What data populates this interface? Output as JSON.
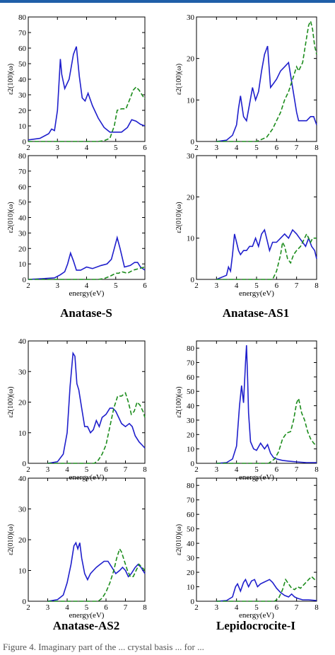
{
  "figure": {
    "caption": "Figure 4. Imaginary part of the ... crystal basis ... for ...",
    "group_titles": [
      "Anatase-S",
      "Anatase-AS1",
      "Anatase-AS2",
      "Lepidocrocite-I"
    ]
  },
  "colors": {
    "solid": "#1f1fcc",
    "dashed": "#1c8c1c",
    "top_rule": "#1f5fa8"
  },
  "chart_data": [
    {
      "type": "line",
      "group": "Anatase-S",
      "ylabel": "ε2(100)(ω)",
      "xlim": [
        2,
        6
      ],
      "ylim": [
        0,
        80
      ],
      "xticks": [
        "2",
        "3",
        "4",
        "5",
        "6"
      ],
      "yticks": [
        "0",
        "10",
        "20",
        "30",
        "40",
        "50",
        "60",
        "70",
        "80"
      ],
      "series": [
        {
          "style": "solid",
          "x": [
            2,
            2.4,
            2.7,
            2.8,
            2.9,
            3.0,
            3.1,
            3.15,
            3.25,
            3.4,
            3.55,
            3.65,
            3.75,
            3.85,
            3.95,
            4.05,
            4.2,
            4.4,
            4.6,
            4.8,
            5.0,
            5.2,
            5.4,
            5.55,
            5.7,
            5.85,
            6
          ],
          "y": [
            1,
            2,
            5,
            8,
            7,
            20,
            53,
            43,
            34,
            40,
            56,
            61,
            42,
            28,
            26,
            31,
            23,
            15,
            9,
            6,
            6,
            6,
            9,
            14,
            13,
            11,
            10
          ]
        },
        {
          "style": "dashed",
          "x": [
            2,
            4.4,
            4.6,
            4.8,
            4.95,
            5.05,
            5.2,
            5.35,
            5.5,
            5.6,
            5.7,
            5.8,
            5.9,
            6
          ],
          "y": [
            0,
            0,
            0.5,
            2,
            10,
            20,
            21,
            21,
            28,
            33,
            35,
            33,
            30,
            27
          ]
        }
      ]
    },
    {
      "type": "line",
      "group": "Anatase-AS1",
      "ylabel": "ε2(100)(ω)",
      "xlim": [
        2,
        8
      ],
      "ylim": [
        0,
        30
      ],
      "xticks": [
        "2",
        "3",
        "4",
        "5",
        "6",
        "7",
        "8"
      ],
      "yticks": [
        "0",
        "10",
        "20",
        "30"
      ],
      "series": [
        {
          "style": "solid",
          "x": [
            3,
            3.5,
            3.8,
            4.0,
            4.1,
            4.2,
            4.35,
            4.5,
            4.65,
            4.8,
            4.95,
            5.1,
            5.25,
            5.4,
            5.55,
            5.7,
            5.85,
            6.0,
            6.2,
            6.4,
            6.6,
            6.8,
            7.0,
            7.1,
            7.3,
            7.5,
            7.7,
            7.85,
            8
          ],
          "y": [
            0,
            0.3,
            1.5,
            4,
            8,
            11,
            6,
            5,
            9,
            13,
            10,
            12,
            17,
            21,
            23,
            13,
            14,
            15,
            17,
            18,
            19,
            13,
            7,
            5,
            5,
            5,
            6,
            6,
            4
          ]
        },
        {
          "style": "dashed",
          "x": [
            3,
            5.0,
            5.5,
            5.8,
            6.0,
            6.2,
            6.4,
            6.6,
            6.8,
            7.0,
            7.1,
            7.3,
            7.4,
            7.5,
            7.6,
            7.7,
            7.8,
            7.9,
            8
          ],
          "y": [
            0,
            0,
            1,
            3,
            5,
            7,
            10,
            12,
            15,
            18,
            17,
            19,
            22,
            25,
            28,
            29,
            27,
            23,
            21
          ]
        }
      ]
    },
    {
      "type": "line",
      "group": "Anatase-S",
      "ylabel": "ε2(010)(ω)",
      "xlabel": "energy(eV)",
      "xlim": [
        2,
        6
      ],
      "ylim": [
        0,
        80
      ],
      "xticks": [
        "2",
        "3",
        "4",
        "5",
        "6"
      ],
      "yticks": [
        "0",
        "10",
        "20",
        "30",
        "40",
        "50",
        "60",
        "70",
        "80"
      ],
      "series": [
        {
          "style": "solid",
          "x": [
            2,
            2.5,
            2.9,
            3.1,
            3.25,
            3.35,
            3.45,
            3.55,
            3.65,
            3.8,
            4.0,
            4.2,
            4.5,
            4.7,
            4.85,
            4.95,
            5.05,
            5.15,
            5.3,
            5.5,
            5.65,
            5.75,
            5.85,
            6
          ],
          "y": [
            0,
            0.5,
            1,
            3,
            5,
            10,
            17,
            12,
            6,
            6,
            8,
            7,
            9,
            10,
            13,
            20,
            27,
            20,
            8,
            9,
            11,
            11,
            8,
            6
          ]
        },
        {
          "style": "dashed",
          "x": [
            2,
            4.4,
            4.6,
            4.8,
            5.0,
            5.1,
            5.2,
            5.4,
            5.6,
            5.8,
            6
          ],
          "y": [
            0,
            0,
            0.5,
            2,
            4,
            4,
            5,
            4,
            6,
            7,
            8
          ]
        }
      ]
    },
    {
      "type": "line",
      "group": "Anatase-AS1",
      "ylabel": "ε2(010)(ω)",
      "xlabel": "energy(eV)",
      "xlim": [
        2,
        8
      ],
      "ylim": [
        0,
        30
      ],
      "xticks": [
        "2",
        "3",
        "4",
        "5",
        "6",
        "7",
        "8"
      ],
      "yticks": [
        "0",
        "10",
        "20",
        "30"
      ],
      "series": [
        {
          "style": "solid",
          "x": [
            3,
            3.5,
            3.6,
            3.7,
            3.8,
            3.9,
            4.0,
            4.1,
            4.2,
            4.35,
            4.5,
            4.65,
            4.8,
            4.95,
            5.1,
            5.25,
            5.4,
            5.5,
            5.65,
            5.8,
            6.0,
            6.2,
            6.4,
            6.6,
            6.8,
            7.0,
            7.15,
            7.3,
            7.45,
            7.6,
            7.75,
            7.9,
            8
          ],
          "y": [
            0,
            1,
            3,
            2,
            6,
            11,
            9,
            7,
            6,
            7,
            7,
            8,
            8,
            10,
            8,
            11,
            12,
            10,
            7,
            9,
            9,
            10,
            11,
            10,
            12,
            11,
            10,
            9,
            8,
            10,
            8,
            7,
            5
          ]
        },
        {
          "style": "dashed",
          "x": [
            3,
            5.8,
            6.0,
            6.2,
            6.3,
            6.4,
            6.55,
            6.7,
            6.85,
            7.0,
            7.2,
            7.4,
            7.5,
            7.6,
            7.7,
            7.8,
            8
          ],
          "y": [
            0,
            0,
            2,
            6,
            9,
            8,
            5,
            4,
            6,
            7,
            8,
            10,
            11,
            10,
            9,
            10,
            10
          ]
        }
      ]
    },
    {
      "type": "line",
      "group": "Anatase-AS2",
      "ylabel": "ε2(100)(ω)",
      "xlabel": "energy(eV)",
      "xlim": [
        2,
        8
      ],
      "ylim": [
        0,
        40
      ],
      "xticks": [
        "2",
        "3",
        "4",
        "5",
        "6",
        "7",
        "8"
      ],
      "yticks": [
        "0",
        "10",
        "20",
        "30",
        "40"
      ],
      "series": [
        {
          "style": "solid",
          "x": [
            3,
            3.5,
            3.8,
            4.0,
            4.15,
            4.3,
            4.4,
            4.5,
            4.6,
            4.75,
            4.9,
            5.05,
            5.2,
            5.35,
            5.5,
            5.65,
            5.8,
            6.0,
            6.2,
            6.35,
            6.5,
            6.65,
            6.8,
            7.0,
            7.2,
            7.35,
            7.5,
            7.7,
            7.85,
            8
          ],
          "y": [
            0,
            0.5,
            3,
            10,
            25,
            36,
            35,
            26,
            24,
            18,
            12,
            12,
            10,
            11,
            14,
            12,
            15,
            16,
            18,
            18,
            17,
            15,
            13,
            12,
            13,
            12,
            9,
            7,
            6,
            5
          ]
        },
        {
          "style": "dashed",
          "x": [
            3,
            5.4,
            5.6,
            5.8,
            6.0,
            6.2,
            6.4,
            6.6,
            6.8,
            7.0,
            7.15,
            7.3,
            7.45,
            7.6,
            7.75,
            7.9,
            8
          ],
          "y": [
            0,
            0,
            1,
            3,
            6,
            12,
            18,
            22,
            22,
            23,
            20,
            16,
            17,
            20,
            19,
            17,
            15
          ]
        }
      ]
    },
    {
      "type": "line",
      "group": "Lepidocrocite-I",
      "ylabel": "ε2(100)(ω)",
      "xlabel": "energy(eV)",
      "xlim": [
        2,
        8
      ],
      "ylim": [
        0,
        85
      ],
      "xticks": [
        "2",
        "3",
        "4",
        "5",
        "6",
        "7",
        "8"
      ],
      "yticks": [
        "0",
        "10",
        "20",
        "30",
        "40",
        "50",
        "60",
        "70",
        "80"
      ],
      "series": [
        {
          "style": "solid",
          "x": [
            3,
            3.5,
            3.8,
            4.0,
            4.15,
            4.25,
            4.35,
            4.45,
            4.5,
            4.55,
            4.6,
            4.7,
            4.85,
            5.0,
            5.2,
            5.4,
            5.55,
            5.7,
            5.85,
            6.0,
            6.3,
            6.6,
            7.0,
            7.5,
            8
          ],
          "y": [
            0,
            0.5,
            3,
            12,
            40,
            54,
            42,
            70,
            82,
            60,
            35,
            15,
            10,
            9,
            14,
            10,
            13,
            7,
            4,
            3,
            2,
            1.5,
            1,
            0.5,
            0.5
          ]
        },
        {
          "style": "dashed",
          "x": [
            3,
            5.6,
            5.9,
            6.1,
            6.3,
            6.5,
            6.7,
            6.85,
            7.0,
            7.1,
            7.25,
            7.4,
            7.55,
            7.7,
            7.85,
            8
          ],
          "y": [
            0,
            0,
            3,
            8,
            17,
            21,
            22,
            30,
            42,
            45,
            35,
            30,
            22,
            17,
            14,
            12
          ]
        }
      ]
    },
    {
      "type": "line",
      "group": "Anatase-AS2",
      "ylabel": "ε2(010)(ω)",
      "xlabel": "energy(eV)",
      "xlim": [
        2,
        8
      ],
      "ylim": [
        0,
        40
      ],
      "xticks": [
        "2",
        "3",
        "4",
        "5",
        "6",
        "7",
        "8"
      ],
      "yticks": [
        "0",
        "10",
        "20",
        "30",
        "40"
      ],
      "series": [
        {
          "style": "solid",
          "x": [
            3,
            3.5,
            3.8,
            4.0,
            4.2,
            4.35,
            4.45,
            4.55,
            4.65,
            4.75,
            4.9,
            5.05,
            5.2,
            5.35,
            5.5,
            5.7,
            5.9,
            6.1,
            6.3,
            6.5,
            6.7,
            6.85,
            7.0,
            7.15,
            7.3,
            7.5,
            7.65,
            7.8,
            8
          ],
          "y": [
            0,
            0.5,
            2,
            6,
            12,
            18,
            19,
            17,
            19,
            14,
            9,
            7,
            9,
            10,
            11,
            12,
            13,
            13,
            11,
            9,
            10,
            11,
            10,
            8,
            9,
            11,
            12,
            11,
            9
          ]
        },
        {
          "style": "dashed",
          "x": [
            3,
            5.6,
            5.8,
            6.0,
            6.2,
            6.4,
            6.55,
            6.7,
            6.8,
            6.95,
            7.1,
            7.25,
            7.4,
            7.55,
            7.7,
            7.85,
            8
          ],
          "y": [
            0,
            0,
            1,
            3,
            6,
            10,
            14,
            17,
            16,
            13,
            10,
            8,
            8,
            10,
            12,
            11,
            10
          ]
        }
      ]
    },
    {
      "type": "line",
      "group": "Lepidocrocite-I",
      "ylabel": "ε2(010)(ω)",
      "xlabel": "energy(eV)",
      "xlim": [
        2,
        8
      ],
      "ylim": [
        0,
        85
      ],
      "xticks": [
        "2",
        "3",
        "4",
        "5",
        "6",
        "7",
        "8"
      ],
      "yticks": [
        "0",
        "10",
        "20",
        "30",
        "40",
        "50",
        "60",
        "70",
        "80"
      ],
      "series": [
        {
          "style": "solid",
          "x": [
            3,
            3.5,
            3.8,
            3.95,
            4.05,
            4.2,
            4.35,
            4.45,
            4.6,
            4.75,
            4.9,
            5.05,
            5.2,
            5.35,
            5.5,
            5.65,
            5.8,
            6.0,
            6.2,
            6.4,
            6.6,
            6.75,
            6.9,
            7.05,
            7.3,
            7.6,
            8
          ],
          "y": [
            0,
            0.5,
            3,
            10,
            12,
            7,
            13,
            15,
            10,
            14,
            15,
            10,
            12,
            13,
            14,
            15,
            13,
            9,
            6,
            4,
            3,
            5,
            3,
            2,
            1,
            1,
            0.5
          ]
        },
        {
          "style": "dashed",
          "x": [
            3,
            5.9,
            6.1,
            6.3,
            6.45,
            6.6,
            6.75,
            6.9,
            7.05,
            7.2,
            7.4,
            7.6,
            7.75,
            7.9,
            8
          ],
          "y": [
            0,
            0,
            2,
            8,
            15,
            12,
            9,
            8,
            10,
            9,
            12,
            15,
            17,
            15,
            14
          ]
        }
      ]
    }
  ]
}
